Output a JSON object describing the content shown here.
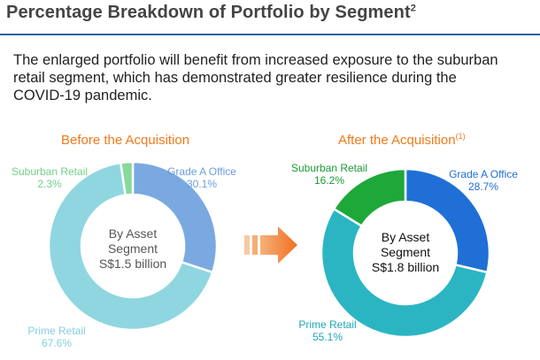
{
  "title": "Percentage Breakdown of Portfolio by Segment",
  "title_footnote": "2",
  "intro_text": "The enlarged portfolio will benefit from increased exposure to the suburban retail segment, which has demonstrated greater resilience during the COVID-19 pandemic.",
  "colors": {
    "heading_orange": "#ef7a1a",
    "rule_blue": "#2d5fa3"
  },
  "chart_data": [
    {
      "type": "pie",
      "title": "Before the Acquisition",
      "title_footnote": "",
      "center_label": [
        "By Asset",
        "Segment",
        "S$1.5 billion"
      ],
      "slices": [
        {
          "name": "Grade A Office",
          "value": 30.1,
          "label": "30.1%",
          "color": "#7aa9e2",
          "label_color": "#6b9ddd"
        },
        {
          "name": "Prime Retail",
          "value": 67.6,
          "label": "67.6%",
          "color": "#8fd6e1",
          "label_color": "#84cfdb"
        },
        {
          "name": "Suburban Retail",
          "value": 2.3,
          "label": "2.3%",
          "color": "#88d99a",
          "label_color": "#74cf88"
        }
      ]
    },
    {
      "type": "pie",
      "title": "After the Acquisition",
      "title_footnote": "(1)",
      "center_label": [
        "By Asset",
        "Segment",
        "S$1.8 billion"
      ],
      "slices": [
        {
          "name": "Grade A Office",
          "value": 28.7,
          "label": "28.7%",
          "color": "#1f6fd6",
          "label_color": "#1f6fd6"
        },
        {
          "name": "Prime Retail",
          "value": 55.1,
          "label": "55.1%",
          "color": "#2bb5c3",
          "label_color": "#1fa6b5"
        },
        {
          "name": "Suburban Retail",
          "value": 16.2,
          "label": "16.2%",
          "color": "#1fa83a",
          "label_color": "#1a9a33"
        }
      ]
    }
  ]
}
